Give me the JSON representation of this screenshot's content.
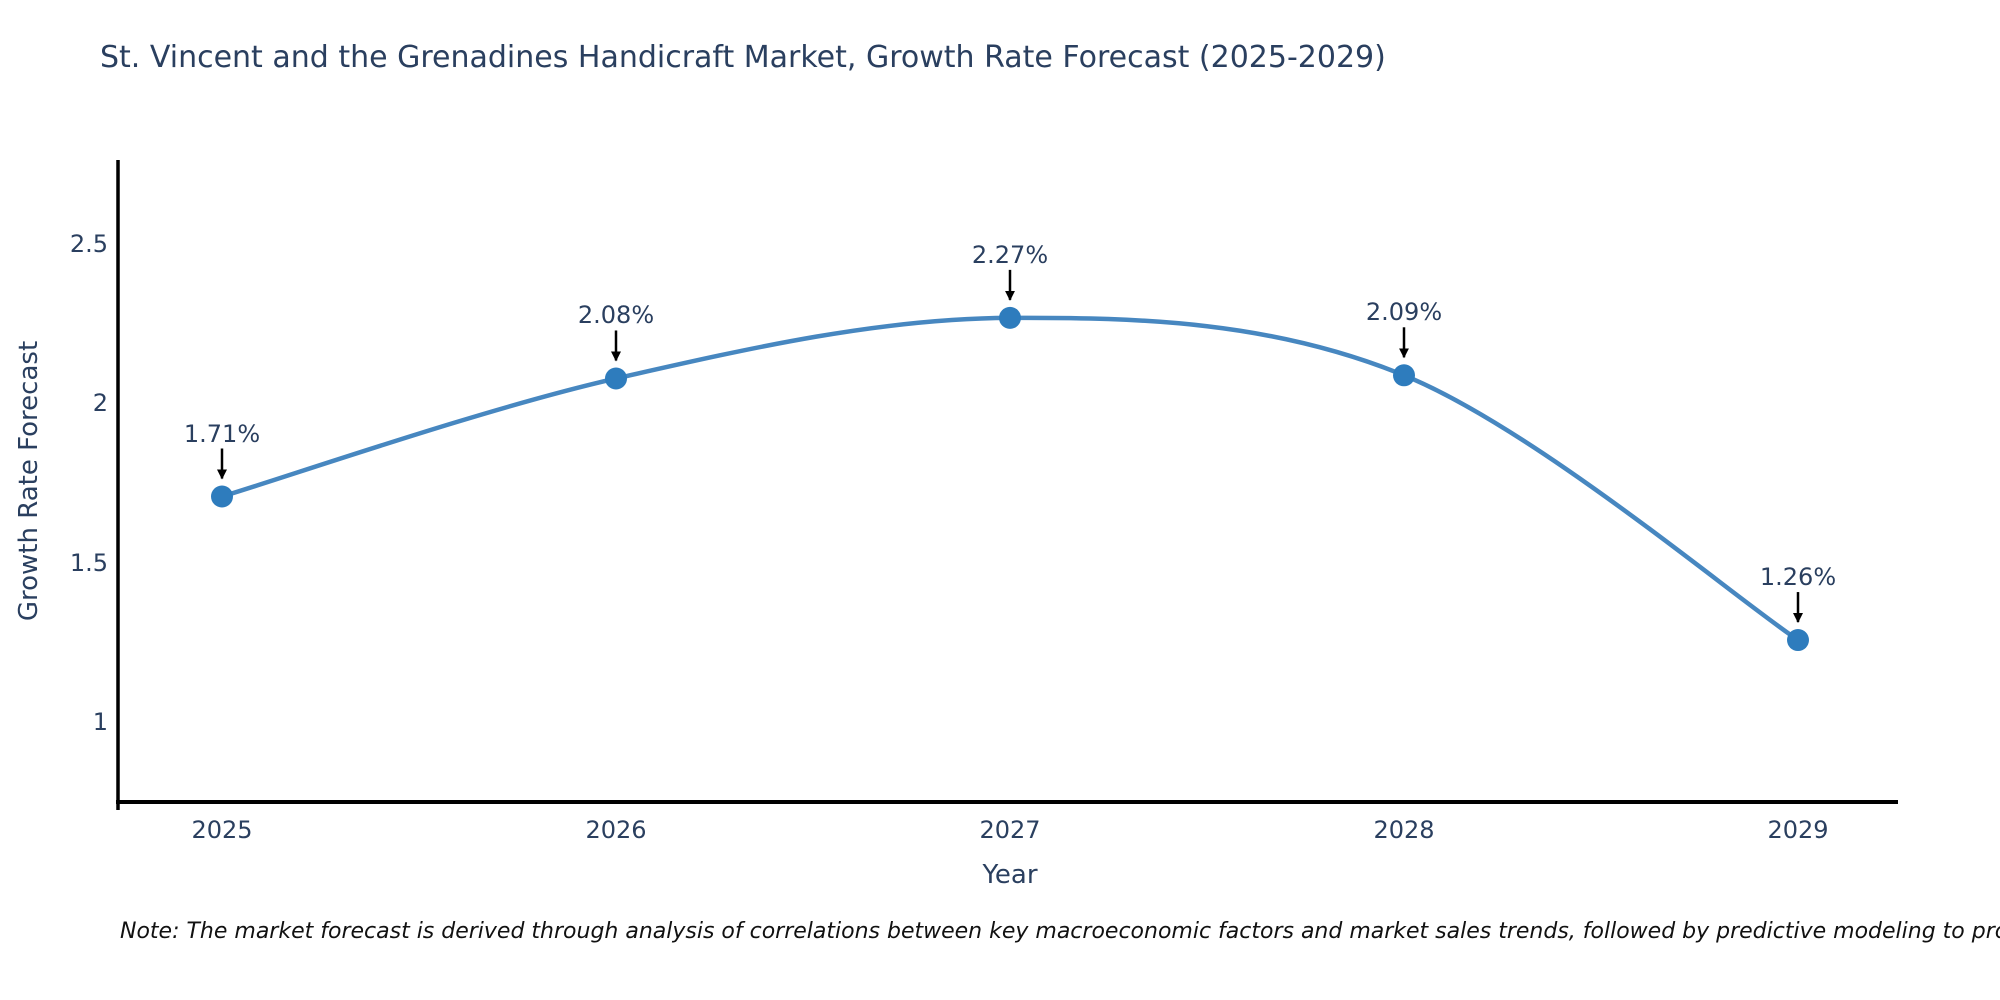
{
  "title": "St. Vincent and the Grenadines Handicraft Market, Growth Rate Forecast (2025-2029)",
  "note": "Note: The market forecast is derived through analysis of correlations between key macroeconomic factors and market sales trends, followed by predictive modeling to project future sales",
  "chart_data": {
    "type": "line",
    "line_shape": "spline",
    "title": "St. Vincent and the Grenadines Handicraft Market, Growth Rate Forecast (2025-2029)",
    "xlabel": "Year",
    "ylabel": "Growth Rate Forecast",
    "x": [
      2025,
      2026,
      2027,
      2028,
      2029
    ],
    "values": [
      1.71,
      2.08,
      2.27,
      2.09,
      1.26
    ],
    "point_labels": [
      "1.71%",
      "2.08%",
      "2.27%",
      "2.09%",
      "1.26%"
    ],
    "yticks": [
      2.5,
      2,
      1.5,
      1
    ],
    "ylim": [
      0.75,
      2.76
    ],
    "xlim": [
      2024.74,
      2029.26
    ],
    "grid": false,
    "legend": "none",
    "colors": {
      "line": "#4787c0",
      "marker": "#2e7cbd",
      "arrow": "#000000",
      "axis": "#000000",
      "text": "#2a3f5f",
      "note_text": "#111111",
      "background": "#ffffff"
    }
  }
}
